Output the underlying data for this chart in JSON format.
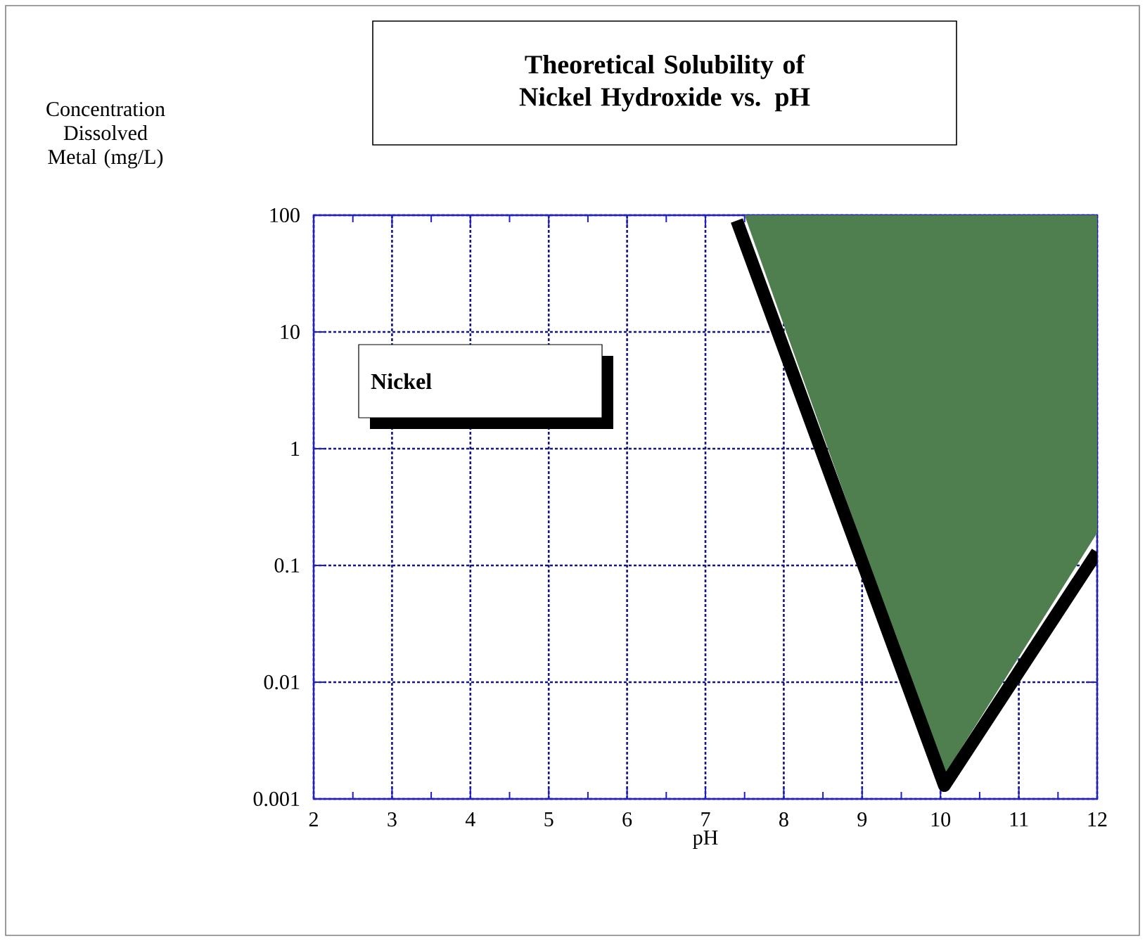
{
  "chart_data": {
    "type": "line",
    "title": "Theoretical Solubility of Nickel Hydroxide vs. pH",
    "xlabel": "pH",
    "ylabel": "Concentration Dissolved Metal (mg/L)",
    "annotations": [
      "Nickel"
    ],
    "series": [
      {
        "type": "area",
        "color": "#4f7f4f",
        "x": [
          7.5,
          10.05,
          12,
          12
        ],
        "values": [
          100,
          0.0016,
          0.19,
          100
        ]
      },
      {
        "color": "#000000",
        "x": [
          7.4,
          10.05,
          12
        ],
        "values": [
          90,
          0.0013,
          0.13
        ]
      }
    ],
    "xlim": [
      2,
      12
    ],
    "ylim": [
      0.001,
      100
    ],
    "log": "y",
    "xticks": [
      2,
      3,
      4,
      5,
      6,
      7,
      8,
      9,
      10,
      11,
      12
    ],
    "yticks": [
      0.001,
      0.01,
      0.1,
      1,
      10,
      100
    ],
    "grid": true
  }
}
